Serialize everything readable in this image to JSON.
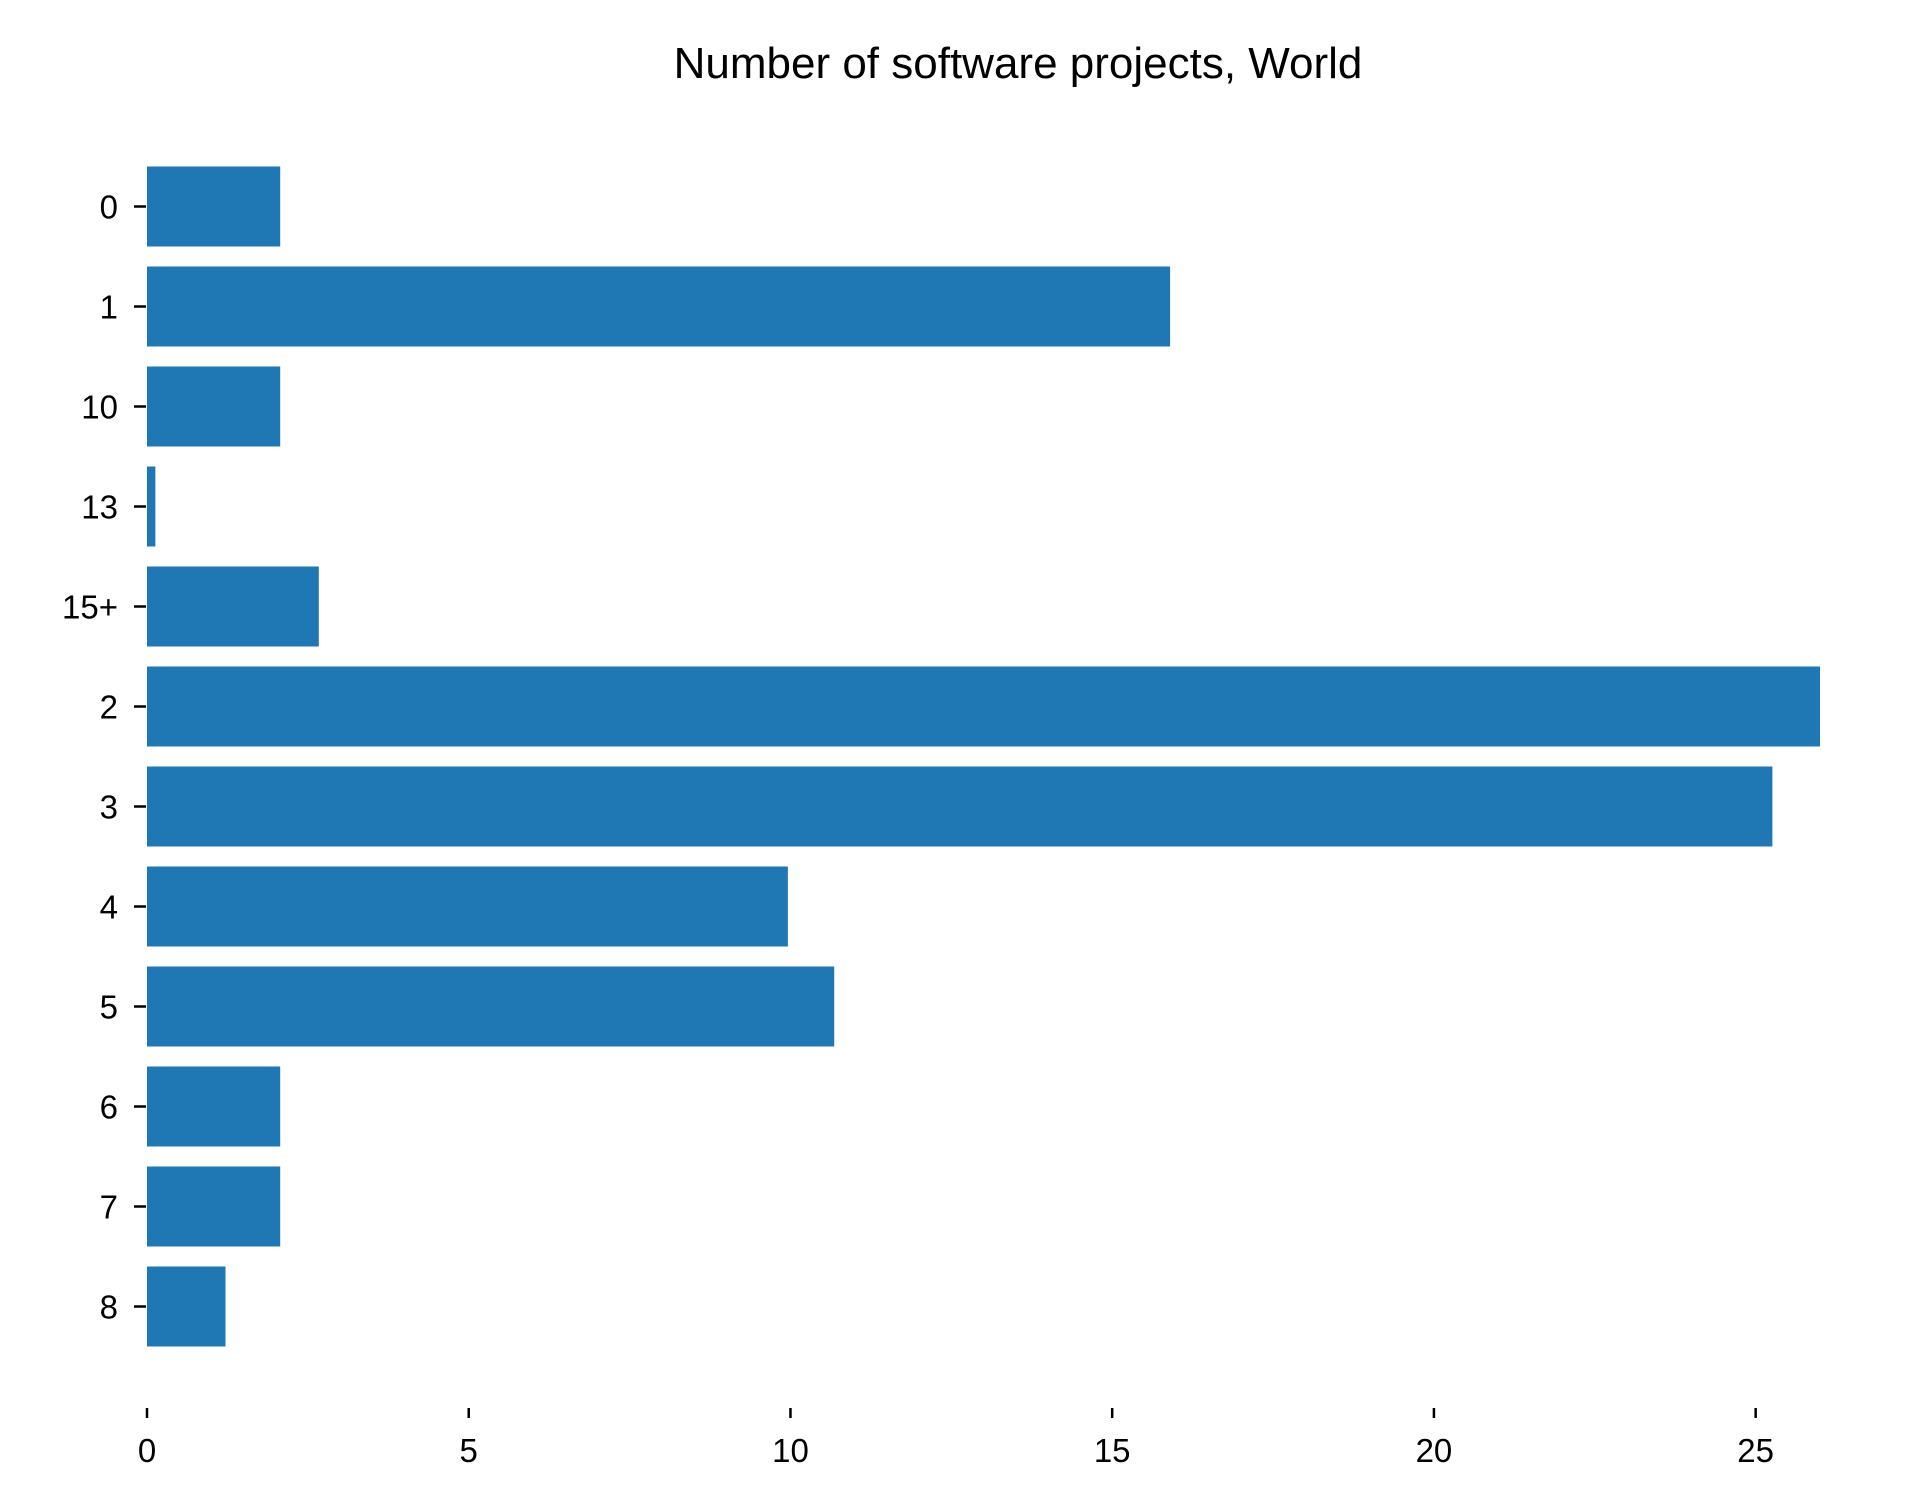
{
  "chart_data": {
    "type": "bar",
    "orientation": "horizontal",
    "title": "Number of software projects, World",
    "xlabel": "",
    "ylabel": "",
    "categories": [
      "0",
      "1",
      "10",
      "13",
      "15+",
      "2",
      "3",
      "4",
      "5",
      "6",
      "7",
      "8"
    ],
    "values": [
      2.07,
      15.9,
      2.07,
      0.13,
      2.67,
      26.0,
      25.26,
      9.96,
      10.68,
      2.07,
      2.07,
      1.22
    ],
    "xlim": [
      0,
      26.0
    ],
    "xticks": [
      0,
      5,
      10,
      15,
      20,
      25
    ],
    "grid": false,
    "legend": "none",
    "bar_color": "#1f77b4"
  }
}
